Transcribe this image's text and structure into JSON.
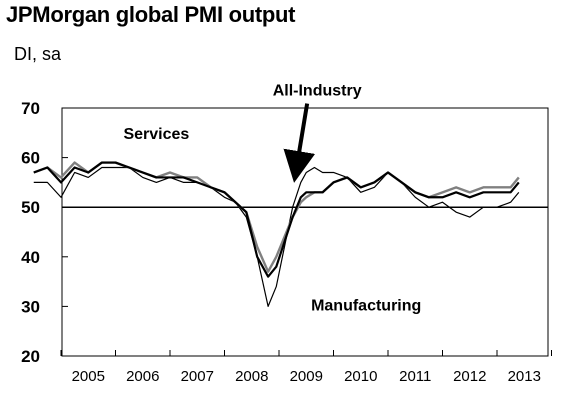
{
  "chart_data": {
    "type": "line",
    "title": "JPMorgan global PMI output",
    "subtitle": "DI, sa",
    "ylim": [
      20,
      70
    ],
    "yticks": [
      20,
      30,
      40,
      50,
      60,
      70
    ],
    "xlim": [
      2004.5,
      2013.6
    ],
    "xtick_labels": [
      "2005",
      "2006",
      "2007",
      "2008",
      "2009",
      "2010",
      "2011",
      "2012",
      "2013"
    ],
    "reference_line": 50,
    "grid": false,
    "legend": "none",
    "annotations": [
      {
        "text": "Services",
        "x": 2006.75,
        "y": 63.8
      },
      {
        "text": "All-Industry",
        "x": 2009.7,
        "y": 72.5,
        "arrow_to": [
          2009.3,
          56.5
        ]
      },
      {
        "text": "Manufacturing",
        "x": 2010.6,
        "y": 29.2
      }
    ],
    "series": [
      {
        "color": "#000000",
        "x": [
          2004.5,
          2004.75,
          2005.0,
          2005.25,
          2005.5,
          2005.75,
          2006.0,
          2006.25,
          2006.5,
          2006.75,
          2007.0,
          2007.25,
          2007.5,
          2007.75,
          2008.0,
          2008.2,
          2008.4,
          2008.6,
          2008.8,
          2008.95,
          2009.1,
          2009.25,
          2009.4,
          2009.5,
          2009.65,
          2009.8,
          2010.0,
          2010.25,
          2010.5,
          2010.75,
          2011.0,
          2011.25,
          2011.5,
          2011.75,
          2012.0,
          2012.25,
          2012.5,
          2012.75,
          2013.0,
          2013.25,
          2013.4
        ],
        "y": [
          55,
          55,
          52,
          57,
          56,
          58,
          58,
          58,
          56,
          55,
          56,
          55,
          55,
          54,
          52,
          51,
          48,
          40,
          30,
          34,
          42,
          50,
          55,
          57,
          58,
          57,
          57,
          56,
          53,
          54,
          57,
          55,
          52,
          50,
          51,
          49,
          48,
          50,
          50,
          51,
          53
        ]
      },
      {
        "color": "#808080",
        "x": [
          2004.5,
          2004.75,
          2005.0,
          2005.25,
          2005.5,
          2005.75,
          2006.0,
          2006.25,
          2006.5,
          2006.75,
          2007.0,
          2007.25,
          2007.5,
          2007.75,
          2008.0,
          2008.2,
          2008.4,
          2008.6,
          2008.8,
          2008.95,
          2009.1,
          2009.25,
          2009.4,
          2009.5,
          2009.65,
          2009.8,
          2010.0,
          2010.25,
          2010.5,
          2010.75,
          2011.0,
          2011.25,
          2011.5,
          2011.75,
          2012.0,
          2012.25,
          2012.5,
          2012.75,
          2013.0,
          2013.25,
          2013.4
        ],
        "y": [
          57,
          58,
          56,
          59,
          57,
          59,
          59,
          58,
          57,
          56,
          57,
          56,
          56,
          54,
          53,
          51,
          49,
          42,
          37,
          40,
          44,
          48,
          51,
          52,
          53,
          53,
          55,
          56,
          54,
          55,
          57,
          55,
          53,
          52,
          53,
          54,
          53,
          54,
          54,
          54,
          56
        ]
      },
      {
        "color": "#000000",
        "x": [
          2004.5,
          2004.75,
          2005.0,
          2005.25,
          2005.5,
          2005.75,
          2006.0,
          2006.25,
          2006.5,
          2006.75,
          2007.0,
          2007.25,
          2007.5,
          2007.75,
          2008.0,
          2008.2,
          2008.4,
          2008.6,
          2008.8,
          2008.95,
          2009.1,
          2009.25,
          2009.4,
          2009.5,
          2009.65,
          2009.8,
          2010.0,
          2010.25,
          2010.5,
          2010.75,
          2011.0,
          2011.25,
          2011.5,
          2011.75,
          2012.0,
          2012.25,
          2012.5,
          2012.75,
          2013.0,
          2013.25,
          2013.4
        ],
        "y": [
          57,
          58,
          55,
          58,
          57,
          59,
          59,
          58,
          57,
          56,
          56,
          56,
          55,
          54,
          53,
          51,
          49,
          40,
          36,
          38,
          43,
          48,
          52,
          53,
          53,
          53,
          55,
          56,
          54,
          55,
          57,
          55,
          53,
          52,
          52,
          53,
          52,
          53,
          53,
          53,
          55
        ]
      }
    ]
  }
}
